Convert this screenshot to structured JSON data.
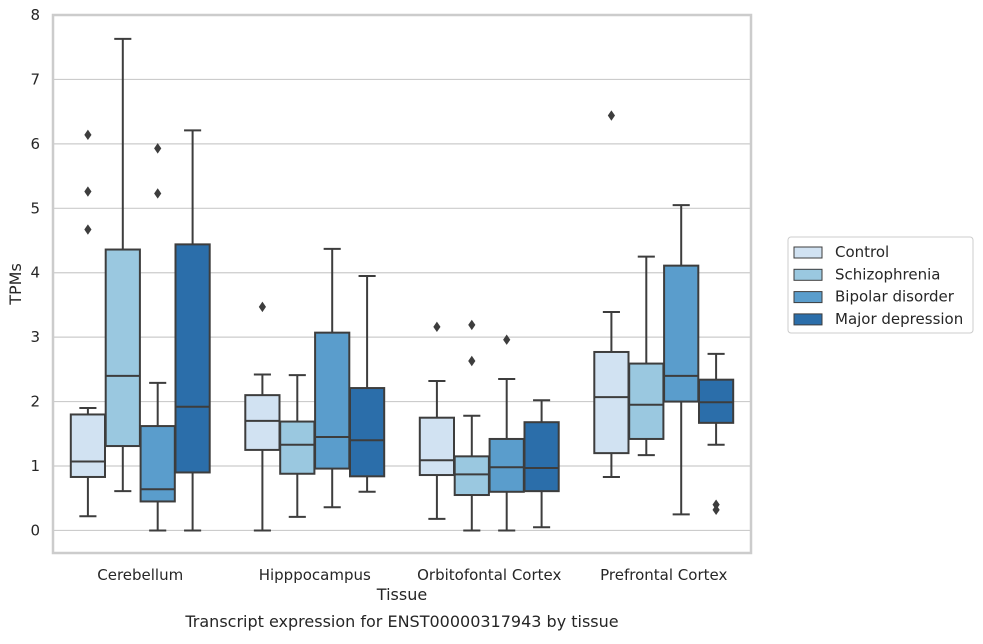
{
  "caption": "Transcript expression for ENST00000317943 by tissue",
  "chart_data": {
    "type": "box",
    "xlabel": "Tissue",
    "ylabel": "TPMs",
    "ylim": [
      -0.35,
      8
    ],
    "yticks": [
      0,
      1,
      2,
      3,
      4,
      5,
      6,
      7,
      8
    ],
    "grid": "horizontal",
    "legend_position": "right",
    "categories": [
      "Cerebellum",
      "Hipppocampus",
      "Orbitofontal Cortex",
      "Prefrontal Cortex"
    ],
    "series": [
      {
        "name": "Control",
        "color": "#d1e2f2",
        "boxes": [
          {
            "whisker_low": 0.22,
            "q1": 0.83,
            "median": 1.07,
            "q3": 1.8,
            "whisker_high": 1.9,
            "outliers": [
              4.67,
              5.26,
              6.14
            ]
          },
          {
            "whisker_low": 0.0,
            "q1": 1.25,
            "median": 1.7,
            "q3": 2.1,
            "whisker_high": 2.42,
            "outliers": [
              3.47
            ]
          },
          {
            "whisker_low": 0.18,
            "q1": 0.86,
            "median": 1.09,
            "q3": 1.75,
            "whisker_high": 2.32,
            "outliers": [
              3.16
            ]
          },
          {
            "whisker_low": 0.83,
            "q1": 1.2,
            "median": 2.07,
            "q3": 2.77,
            "whisker_high": 3.39,
            "outliers": [
              6.44
            ]
          }
        ]
      },
      {
        "name": "Schizophrenia",
        "color": "#9ac8e0",
        "boxes": [
          {
            "whisker_low": 0.61,
            "q1": 1.31,
            "median": 2.4,
            "q3": 4.36,
            "whisker_high": 7.63,
            "outliers": []
          },
          {
            "whisker_low": 0.21,
            "q1": 0.88,
            "median": 1.33,
            "q3": 1.69,
            "whisker_high": 2.41,
            "outliers": []
          },
          {
            "whisker_low": 0.0,
            "q1": 0.55,
            "median": 0.87,
            "q3": 1.15,
            "whisker_high": 1.78,
            "outliers": [
              2.63,
              3.19
            ]
          },
          {
            "whisker_low": 1.17,
            "q1": 1.42,
            "median": 1.95,
            "q3": 2.59,
            "whisker_high": 4.25,
            "outliers": []
          }
        ]
      },
      {
        "name": "Bipolar disorder",
        "color": "#5a9dcc",
        "boxes": [
          {
            "whisker_low": 0.0,
            "q1": 0.45,
            "median": 0.64,
            "q3": 1.62,
            "whisker_high": 2.29,
            "outliers": [
              5.23,
              5.93
            ]
          },
          {
            "whisker_low": 0.36,
            "q1": 0.96,
            "median": 1.45,
            "q3": 3.07,
            "whisker_high": 4.37,
            "outliers": []
          },
          {
            "whisker_low": 0.0,
            "q1": 0.6,
            "median": 0.98,
            "q3": 1.42,
            "whisker_high": 2.35,
            "outliers": [
              2.96
            ]
          },
          {
            "whisker_low": 0.25,
            "q1": 2.0,
            "median": 2.4,
            "q3": 4.11,
            "whisker_high": 5.05,
            "outliers": []
          }
        ]
      },
      {
        "name": "Major depression",
        "color": "#2b6eaa",
        "boxes": [
          {
            "whisker_low": 0.0,
            "q1": 0.9,
            "median": 1.92,
            "q3": 4.44,
            "whisker_high": 6.21,
            "outliers": []
          },
          {
            "whisker_low": 0.6,
            "q1": 0.84,
            "median": 1.4,
            "q3": 2.21,
            "whisker_high": 3.95,
            "outliers": []
          },
          {
            "whisker_low": 0.05,
            "q1": 0.61,
            "median": 0.97,
            "q3": 1.68,
            "whisker_high": 2.02,
            "outliers": []
          },
          {
            "whisker_low": 1.33,
            "q1": 1.67,
            "median": 1.99,
            "q3": 2.34,
            "whisker_high": 2.74,
            "outliers": [
              0.32,
              0.4
            ]
          }
        ]
      }
    ]
  }
}
